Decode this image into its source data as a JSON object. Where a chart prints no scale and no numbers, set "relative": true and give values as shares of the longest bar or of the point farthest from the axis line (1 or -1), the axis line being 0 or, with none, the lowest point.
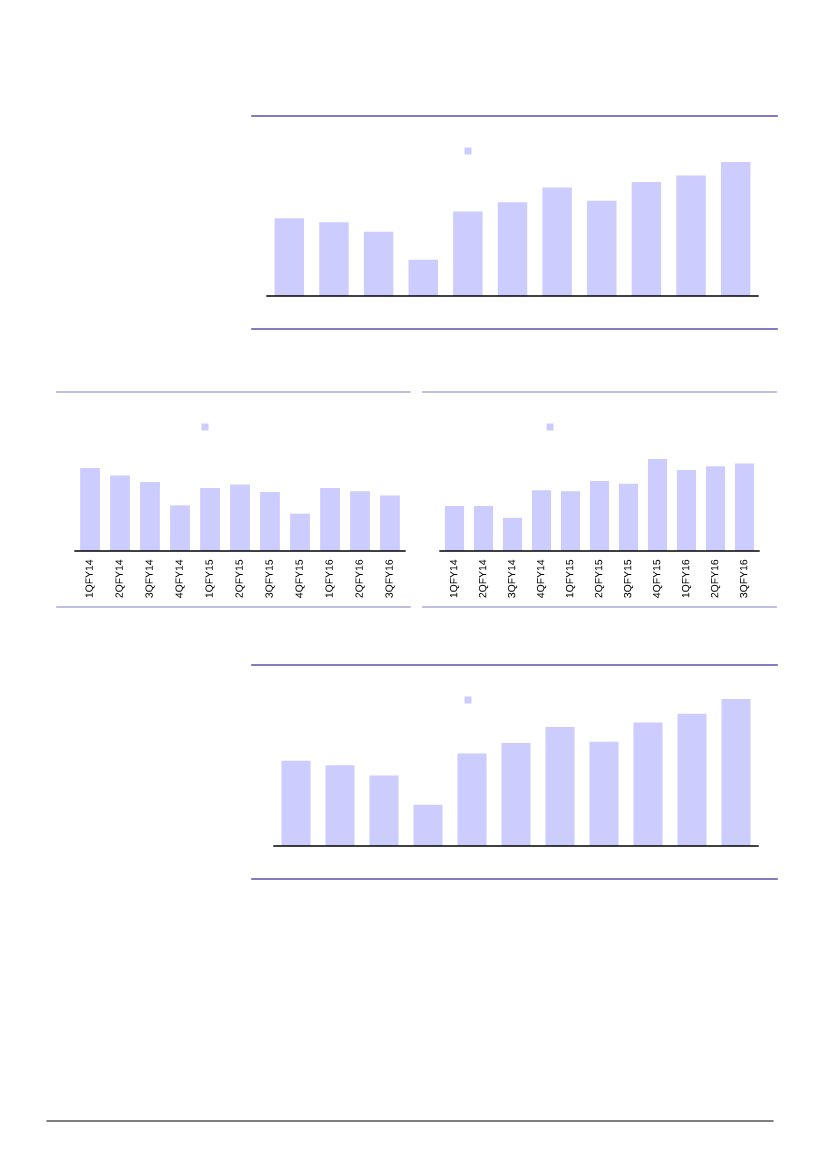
{
  "chart_data": [
    {
      "type": "bar",
      "relative": true,
      "color": "#ccccff",
      "categories": [
        null,
        null,
        null,
        null,
        null,
        null,
        null,
        null,
        null,
        null,
        null
      ],
      "values": [
        0.58,
        0.55,
        0.48,
        0.27,
        0.63,
        0.7,
        0.81,
        0.71,
        0.85,
        0.9,
        1
      ]
    },
    {
      "type": "bar",
      "relative": true,
      "color": "#ccccff",
      "categories": [
        "1QFY14",
        "2QFY14",
        "3QFY14",
        "4QFY14",
        "1QFY15",
        "2QFY15",
        "3QFY15",
        "4QFY15",
        "1QFY16",
        "2QFY16",
        "3QFY16"
      ],
      "values": [
        1,
        0.91,
        0.83,
        0.55,
        0.76,
        0.8,
        0.71,
        0.45,
        0.76,
        0.72,
        0.67
      ]
    },
    {
      "type": "bar",
      "relative": true,
      "color": "#ccccff",
      "categories": [
        "1QFY14",
        "2QFY14",
        "3QFY14",
        "4QFY14",
        "1QFY15",
        "2QFY15",
        "3QFY15",
        "4QFY15",
        "1QFY16",
        "2QFY16",
        "3QFY16"
      ],
      "values": [
        0.49,
        0.49,
        0.36,
        0.66,
        0.65,
        0.76,
        0.73,
        1,
        0.88,
        0.92,
        0.95
      ]
    },
    {
      "type": "bar",
      "relative": true,
      "color": "#ccccff",
      "categories": [
        null,
        null,
        null,
        null,
        null,
        null,
        null,
        null,
        null,
        null,
        null
      ],
      "values": [
        0.58,
        0.55,
        0.48,
        0.28,
        0.63,
        0.7,
        0.81,
        0.71,
        0.84,
        0.9,
        1
      ]
    }
  ]
}
